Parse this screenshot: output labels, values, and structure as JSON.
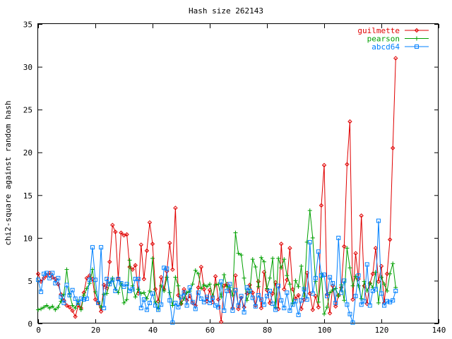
{
  "chart_data": {
    "type": "line",
    "title": "Hash size 262143",
    "xlabel": "",
    "ylabel": "chi2-square against random hash",
    "xlim": [
      0,
      140
    ],
    "ylim": [
      0,
      35
    ],
    "xticks": [
      "0",
      "20",
      "40",
      "60",
      "80",
      "100",
      "120",
      "140"
    ],
    "yticks": [
      "0",
      "5",
      "10",
      "15",
      "20",
      "25",
      "30",
      "35"
    ],
    "grid": false,
    "legend_position": "top-right",
    "series": [
      {
        "name": "guilmette",
        "color": "#e00000",
        "marker": "diamond",
        "x": [
          0,
          1,
          2,
          3,
          4,
          5,
          6,
          7,
          8,
          9,
          10,
          11,
          12,
          13,
          14,
          15,
          16,
          17,
          18,
          19,
          20,
          21,
          22,
          23,
          24,
          25,
          26,
          27,
          28,
          29,
          30,
          31,
          32,
          33,
          34,
          35,
          36,
          37,
          38,
          39,
          40,
          41,
          42,
          43,
          44,
          45,
          46,
          47,
          48,
          49,
          50,
          51,
          52,
          53,
          54,
          55,
          56,
          57,
          58,
          59,
          60,
          61,
          62,
          63,
          64,
          65,
          66,
          67,
          68,
          69,
          70,
          71,
          72,
          73,
          74,
          75,
          76,
          77,
          78,
          79,
          80,
          81,
          82,
          83,
          84,
          85,
          86,
          87,
          88,
          89,
          90,
          91,
          92,
          93,
          94,
          95,
          96,
          97,
          98,
          99,
          100,
          101,
          102,
          103,
          104,
          105,
          106,
          107,
          108,
          109,
          110,
          111,
          112,
          113,
          114,
          115,
          116,
          117,
          118,
          119,
          120,
          121,
          122,
          123,
          124,
          125
        ],
        "values": [
          5.8,
          4.9,
          5.3,
          5.6,
          5.9,
          5.4,
          5.2,
          4.6,
          3.4,
          2.7,
          2.1,
          1.9,
          1.5,
          0.8,
          2.1,
          1.8,
          3.6,
          5.3,
          5.6,
          5.2,
          2.8,
          2.4,
          1.4,
          4.5,
          4.1,
          7.2,
          11.5,
          10.7,
          5.2,
          10.6,
          10.3,
          10.4,
          6.6,
          6.3,
          6.8,
          3.5,
          9.2,
          5.2,
          8.5,
          11.8,
          9.3,
          4.0,
          2.6,
          5.4,
          4.0,
          6.1,
          9.4,
          6.3,
          13.5,
          3.3,
          2.3,
          4.0,
          2.7,
          3.2,
          2.4,
          2.1,
          4.2,
          6.6,
          4.0,
          2.6,
          3.9,
          2.5,
          5.5,
          2.8,
          0.2,
          4.4,
          4.6,
          3.8,
          1.8,
          5.6,
          1.7,
          3.0,
          1.9,
          3.5,
          4.5,
          3.6,
          2.1,
          4.9,
          1.8,
          6.0,
          3.9,
          2.4,
          3.5,
          4.8,
          1.7,
          9.3,
          4.0,
          5.1,
          8.8,
          4.0,
          2.9,
          3.3,
          1.7,
          2.8,
          5.9,
          3.5,
          1.6,
          3.2,
          1.9,
          13.8,
          18.5,
          3.4,
          1.2,
          4.4,
          2.0,
          3.3,
          4.2,
          9.0,
          18.6,
          23.6,
          2.8,
          8.2,
          5.2,
          12.6,
          4.4,
          2.3,
          4.7,
          5.8,
          8.8,
          4.9,
          6.7,
          2.4,
          5.8,
          9.8,
          20.5,
          31.0
        ],
        "ydata_note": ""
      },
      {
        "name": "pearson",
        "color": "#00a000",
        "marker": "plus",
        "x": [
          0,
          1,
          2,
          3,
          4,
          5,
          6,
          7,
          8,
          9,
          10,
          11,
          12,
          13,
          14,
          15,
          16,
          17,
          18,
          19,
          20,
          21,
          22,
          23,
          24,
          25,
          26,
          27,
          28,
          29,
          30,
          31,
          32,
          33,
          34,
          35,
          36,
          37,
          38,
          39,
          40,
          41,
          42,
          43,
          44,
          45,
          46,
          47,
          48,
          49,
          50,
          51,
          52,
          53,
          54,
          55,
          56,
          57,
          58,
          59,
          60,
          61,
          62,
          63,
          64,
          65,
          66,
          67,
          68,
          69,
          70,
          71,
          72,
          73,
          74,
          75,
          76,
          77,
          78,
          79,
          80,
          81,
          82,
          83,
          84,
          85,
          86,
          87,
          88,
          89,
          90,
          91,
          92,
          93,
          94,
          95,
          96,
          97,
          98,
          99,
          100,
          101,
          102,
          103,
          104,
          105,
          106,
          107,
          108,
          109,
          110,
          111,
          112,
          113,
          114,
          115,
          116,
          117,
          118,
          119,
          120,
          121,
          122,
          123,
          124,
          125
        ],
        "values": [
          1.6,
          1.7,
          1.9,
          2.1,
          1.8,
          2.0,
          1.6,
          1.9,
          2.6,
          3.4,
          6.3,
          3.4,
          2.1,
          1.8,
          2.6,
          1.6,
          3.3,
          4.1,
          4.7,
          6.3,
          3.7,
          2.6,
          1.9,
          3.4,
          3.5,
          4.7,
          5.3,
          4.0,
          3.6,
          4.7,
          2.4,
          2.8,
          7.4,
          4.4,
          3.1,
          4.0,
          3.5,
          3.6,
          2.9,
          3.8,
          7.6,
          2.5,
          1.7,
          4.4,
          3.8,
          5.4,
          3.6,
          2.1,
          5.4,
          4.4,
          2.3,
          2.9,
          3.6,
          3.8,
          4.6,
          6.2,
          5.8,
          4.1,
          4.5,
          4.3,
          4.6,
          3.2,
          4.5,
          4.6,
          3.1,
          5.7,
          4.3,
          4.2,
          3.3,
          10.6,
          8.2,
          8.0,
          5.3,
          2.7,
          3.7,
          7.5,
          6.6,
          4.3,
          7.7,
          7.2,
          4.1,
          5.3,
          7.6,
          1.9,
          7.6,
          6.5,
          7.5,
          5.6,
          4.6,
          2.3,
          5.0,
          4.3,
          6.7,
          3.2,
          9.5,
          13.2,
          10.0,
          4.9,
          2.5,
          5.8,
          1.1,
          1.9,
          3.6,
          3.9,
          4.1,
          3.2,
          4.5,
          2.7,
          8.8,
          6.5,
          4.4,
          5.5,
          4.4,
          2.9,
          4.9,
          3.8,
          4.7,
          4.2,
          6.0,
          2.4,
          5.4,
          4.6,
          3.8,
          5.8,
          7.0,
          4.2
        ],
        "ydata_note": ""
      },
      {
        "name": "abcd64",
        "color": "#0080ff",
        "marker": "square",
        "x": [
          0,
          1,
          2,
          3,
          4,
          5,
          6,
          7,
          8,
          9,
          10,
          11,
          12,
          13,
          14,
          15,
          16,
          17,
          18,
          19,
          20,
          21,
          22,
          23,
          24,
          25,
          26,
          27,
          28,
          29,
          30,
          31,
          32,
          33,
          34,
          35,
          36,
          37,
          38,
          39,
          40,
          41,
          42,
          43,
          44,
          45,
          46,
          47,
          48,
          49,
          50,
          51,
          52,
          53,
          54,
          55,
          56,
          57,
          58,
          59,
          60,
          61,
          62,
          63,
          64,
          65,
          66,
          67,
          68,
          69,
          70,
          71,
          72,
          73,
          74,
          75,
          76,
          77,
          78,
          79,
          80,
          81,
          82,
          83,
          84,
          85,
          86,
          87,
          88,
          89,
          90,
          91,
          92,
          93,
          94,
          95,
          96,
          97,
          98,
          99,
          100,
          101,
          102,
          103,
          104,
          105,
          106,
          107,
          108,
          109,
          110,
          111,
          112,
          113,
          114,
          115,
          116,
          117,
          118,
          119,
          120,
          121,
          122,
          123,
          124,
          125
        ],
        "values": [
          5.1,
          3.7,
          5.8,
          5.9,
          5.3,
          5.9,
          4.7,
          5.3,
          3.1,
          2.4,
          4.5,
          3.3,
          3.9,
          2.9,
          2.4,
          2.9,
          2.8,
          2.9,
          5.1,
          8.9,
          5.1,
          2.4,
          8.9,
          1.8,
          5.2,
          4.6,
          5.1,
          3.8,
          5.2,
          4.7,
          4.3,
          4.6,
          3.8,
          4.0,
          5.2,
          5.2,
          1.8,
          2.8,
          1.6,
          2.4,
          3.5,
          2.1,
          1.6,
          2.2,
          6.5,
          6.4,
          2.7,
          0.1,
          2.4,
          1.9,
          3.1,
          3.6,
          2.1,
          4.2,
          2.5,
          1.7,
          3.6,
          2.9,
          2.5,
          3.1,
          2.4,
          3.0,
          2.1,
          1.9,
          4.9,
          1.5,
          3.8,
          4.6,
          1.5,
          3.9,
          2.1,
          3.2,
          1.3,
          4.2,
          3.8,
          3.0,
          2.0,
          3.3,
          2.8,
          2.2,
          3.2,
          3.8,
          2.3,
          1.6,
          4.4,
          2.7,
          1.8,
          3.6,
          1.5,
          2.2,
          2.6,
          1.0,
          2.7,
          4.0,
          2.8,
          9.5,
          3.5,
          5.3,
          8.4,
          5.6,
          5.7,
          3.2,
          5.4,
          4.7,
          2.4,
          10.0,
          3.6,
          5.0,
          2.2,
          1.1,
          0.1,
          3.2,
          5.6,
          2.2,
          2.6,
          6.9,
          2.1,
          3.8,
          4.0,
          12.0,
          3.5,
          2.1,
          2.6,
          2.5,
          2.7,
          3.8
        ],
        "ydata_note": ""
      }
    ]
  }
}
